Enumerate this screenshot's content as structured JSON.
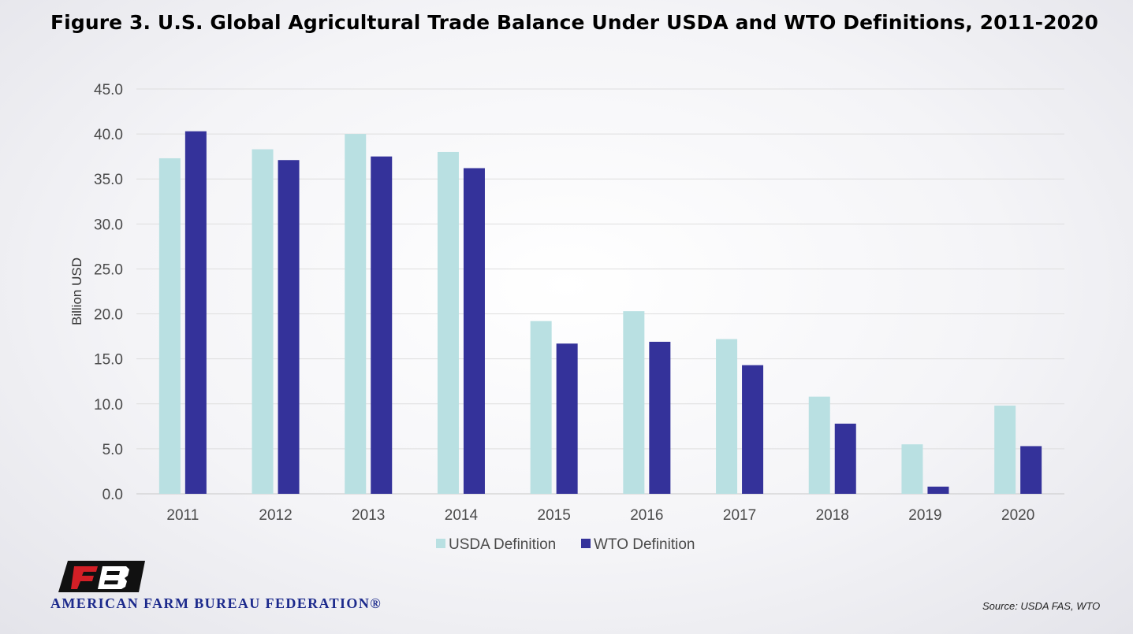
{
  "title": "Figure 3. U.S. Global Agricultural Trade Balance Under USDA and WTO Definitions, 2011-2020",
  "organization": "AMERICAN FARM BUREAU FEDERATION®",
  "logo_icon": "afbf-logo-icon",
  "source": "Source: USDA FAS, WTO",
  "chart_data": {
    "type": "bar",
    "title": "",
    "xlabel": "",
    "ylabel": "Billion USD",
    "ylim": [
      0,
      45
    ],
    "yticks": [
      "0.0",
      "5.0",
      "10.0",
      "15.0",
      "20.0",
      "25.0",
      "30.0",
      "35.0",
      "40.0",
      "45.0"
    ],
    "grid": true,
    "legend_position": "bottom",
    "categories": [
      "2011",
      "2012",
      "2013",
      "2014",
      "2015",
      "2016",
      "2017",
      "2018",
      "2019",
      "2020"
    ],
    "series": [
      {
        "name": "USDA Definition",
        "color": "#b9e0e2",
        "values": [
          37.3,
          38.3,
          40.0,
          38.0,
          19.2,
          20.3,
          17.2,
          10.8,
          5.5,
          9.8
        ]
      },
      {
        "name": "WTO Definition",
        "color": "#34329a",
        "values": [
          40.3,
          37.1,
          37.5,
          36.2,
          16.7,
          16.9,
          14.3,
          7.8,
          0.8,
          5.3
        ]
      }
    ]
  }
}
